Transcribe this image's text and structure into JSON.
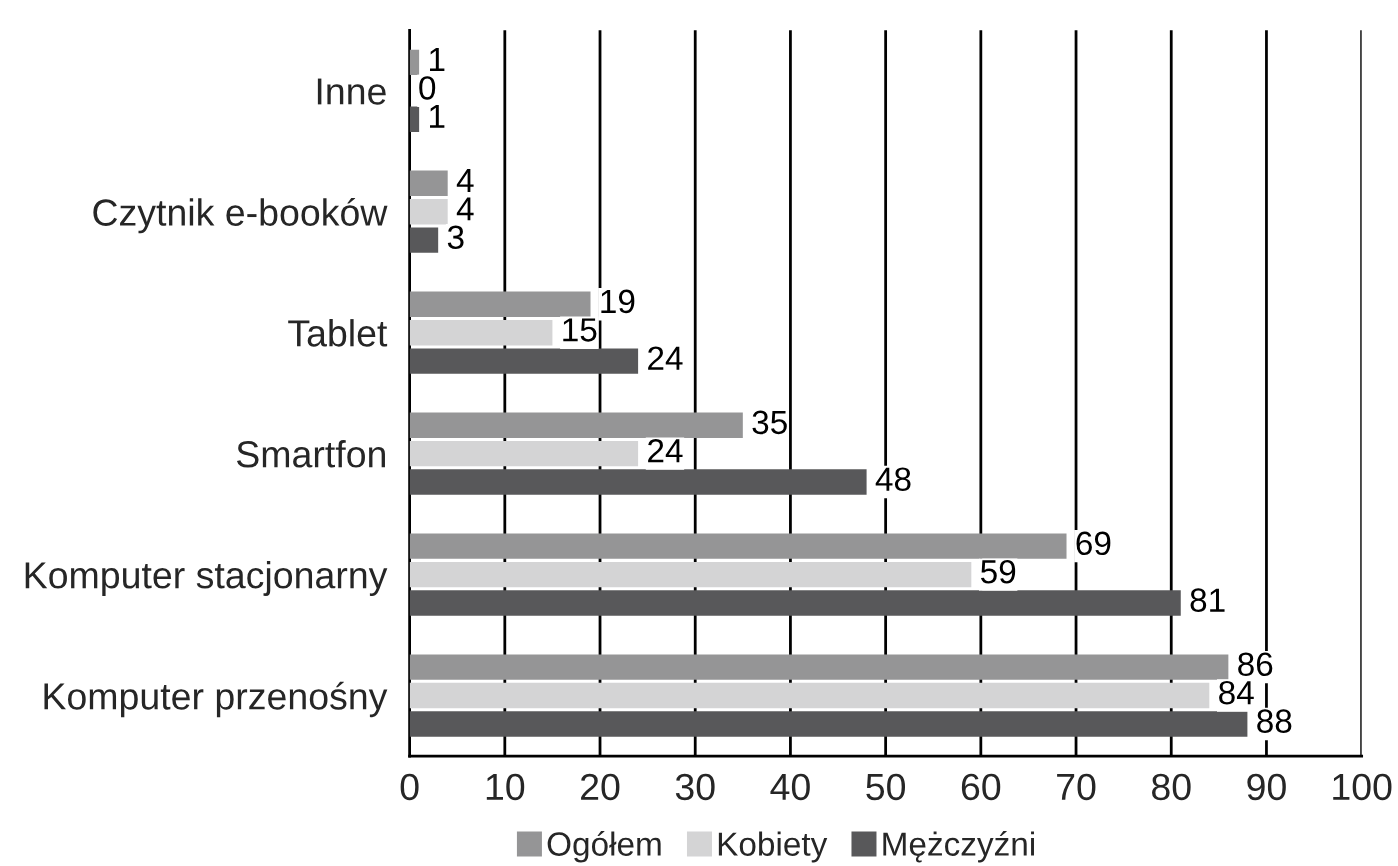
{
  "chart_data": {
    "type": "bar",
    "orientation": "horizontal",
    "categories": [
      "Inne",
      "Czytnik e-booków",
      "Tablet",
      "Smartfon",
      "Komputer stacjonarny",
      "Komputer przenośny"
    ],
    "series": [
      {
        "name": "Ogółem",
        "color": "#959596",
        "values": [
          1,
          4,
          19,
          35,
          69,
          86
        ]
      },
      {
        "name": "Kobiety",
        "color": "#d4d4d5",
        "values": [
          0,
          4,
          15,
          24,
          59,
          84
        ]
      },
      {
        "name": "Mężczyźni",
        "color": "#58585a",
        "values": [
          1,
          3,
          24,
          48,
          81,
          88
        ]
      }
    ],
    "xlim": [
      0,
      100
    ],
    "xticks": [
      0,
      10,
      20,
      30,
      40,
      50,
      60,
      70,
      80,
      90,
      100
    ],
    "grid": "x",
    "legend": "bottom",
    "data_labels": true
  }
}
